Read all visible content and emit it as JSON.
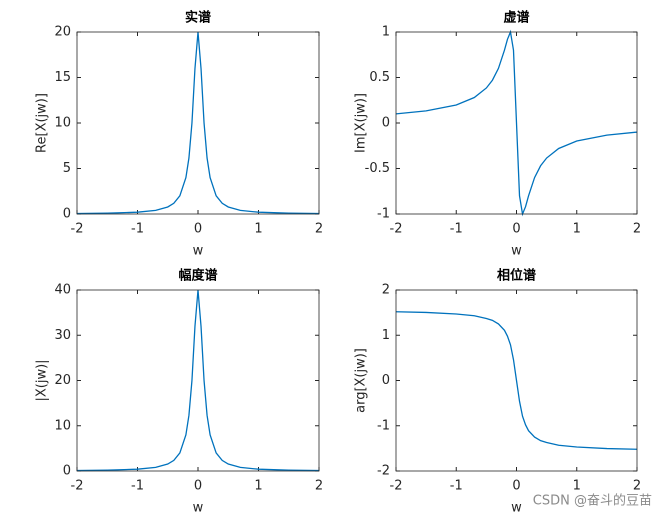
{
  "chart_data": [
    {
      "type": "line",
      "title": "实谱",
      "x_label": "w",
      "y_label": "Re[X(jw)]",
      "color": "#0072bd",
      "x": [
        -2,
        -1.5,
        -1,
        -0.7,
        -0.5,
        -0.4,
        -0.3,
        -0.2,
        -0.15,
        -0.1,
        -0.05,
        0,
        0.05,
        0.1,
        0.15,
        0.2,
        0.3,
        0.4,
        0.5,
        0.7,
        1,
        1.5,
        2
      ],
      "values": [
        0.05,
        0.088,
        0.198,
        0.4,
        0.77,
        1.18,
        2,
        4,
        6.15,
        10,
        16,
        20,
        16,
        10,
        6.15,
        4,
        2,
        1.18,
        0.77,
        0.4,
        0.198,
        0.088,
        0.05
      ],
      "xlim": [
        -2,
        2
      ],
      "ylim": [
        0,
        20
      ],
      "xticks": [
        -2,
        -1,
        0,
        1,
        2
      ],
      "yticks": [
        0,
        5,
        10,
        15,
        20
      ]
    },
    {
      "type": "line",
      "title": "虚谱",
      "x_label": "w",
      "y_label": "Im[X(jw)]",
      "color": "#0072bd",
      "x": [
        -2,
        -1.5,
        -1,
        -0.7,
        -0.5,
        -0.4,
        -0.3,
        -0.2,
        -0.15,
        -0.1,
        -0.05,
        0,
        0.05,
        0.1,
        0.15,
        0.2,
        0.3,
        0.4,
        0.5,
        0.7,
        1,
        1.5,
        2
      ],
      "values": [
        0.1,
        0.133,
        0.198,
        0.28,
        0.385,
        0.47,
        0.6,
        0.8,
        0.92,
        1,
        0.8,
        0,
        -0.8,
        -1,
        -0.92,
        -0.8,
        -0.6,
        -0.47,
        -0.385,
        -0.28,
        -0.198,
        -0.133,
        -0.1
      ],
      "xlim": [
        -2,
        2
      ],
      "ylim": [
        -1,
        1
      ],
      "xticks": [
        -2,
        -1,
        0,
        1,
        2
      ],
      "yticks": [
        -1,
        -0.5,
        0,
        0.5,
        1
      ]
    },
    {
      "type": "line",
      "title": "幅度谱",
      "x_label": "w",
      "y_label": "|X(jw)|",
      "color": "#0072bd",
      "x": [
        -2,
        -1.5,
        -1,
        -0.7,
        -0.5,
        -0.4,
        -0.3,
        -0.2,
        -0.15,
        -0.1,
        -0.05,
        0,
        0.05,
        0.1,
        0.15,
        0.2,
        0.3,
        0.4,
        0.5,
        0.7,
        1,
        1.5,
        2
      ],
      "values": [
        0.1,
        0.18,
        0.4,
        0.8,
        1.54,
        2.35,
        4,
        8,
        12.3,
        20,
        32,
        40,
        32,
        20,
        12.3,
        8,
        4,
        2.35,
        1.54,
        0.8,
        0.4,
        0.18,
        0.1
      ],
      "xlim": [
        -2,
        2
      ],
      "ylim": [
        0,
        40
      ],
      "xticks": [
        -2,
        -1,
        0,
        1,
        2
      ],
      "yticks": [
        0,
        10,
        20,
        30,
        40
      ]
    },
    {
      "type": "line",
      "title": "相位谱",
      "x_label": "w",
      "y_label": "arg[X(jw)]",
      "color": "#0072bd",
      "x": [
        -2,
        -1.5,
        -1,
        -0.7,
        -0.5,
        -0.4,
        -0.3,
        -0.2,
        -0.15,
        -0.1,
        -0.05,
        0,
        0.05,
        0.1,
        0.15,
        0.2,
        0.3,
        0.4,
        0.5,
        0.7,
        1,
        1.5,
        2
      ],
      "values": [
        1.52,
        1.504,
        1.47,
        1.43,
        1.37,
        1.33,
        1.25,
        1.11,
        0.98,
        0.79,
        0.46,
        0,
        -0.46,
        -0.79,
        -0.98,
        -1.11,
        -1.25,
        -1.33,
        -1.37,
        -1.43,
        -1.47,
        -1.504,
        -1.52
      ],
      "xlim": [
        -2,
        2
      ],
      "ylim": [
        -2,
        2
      ],
      "xticks": [
        -2,
        -1,
        0,
        1,
        2
      ],
      "yticks": [
        -2,
        -1,
        0,
        1,
        2
      ]
    }
  ],
  "watermark": "CSDN @奋斗的豆苗"
}
